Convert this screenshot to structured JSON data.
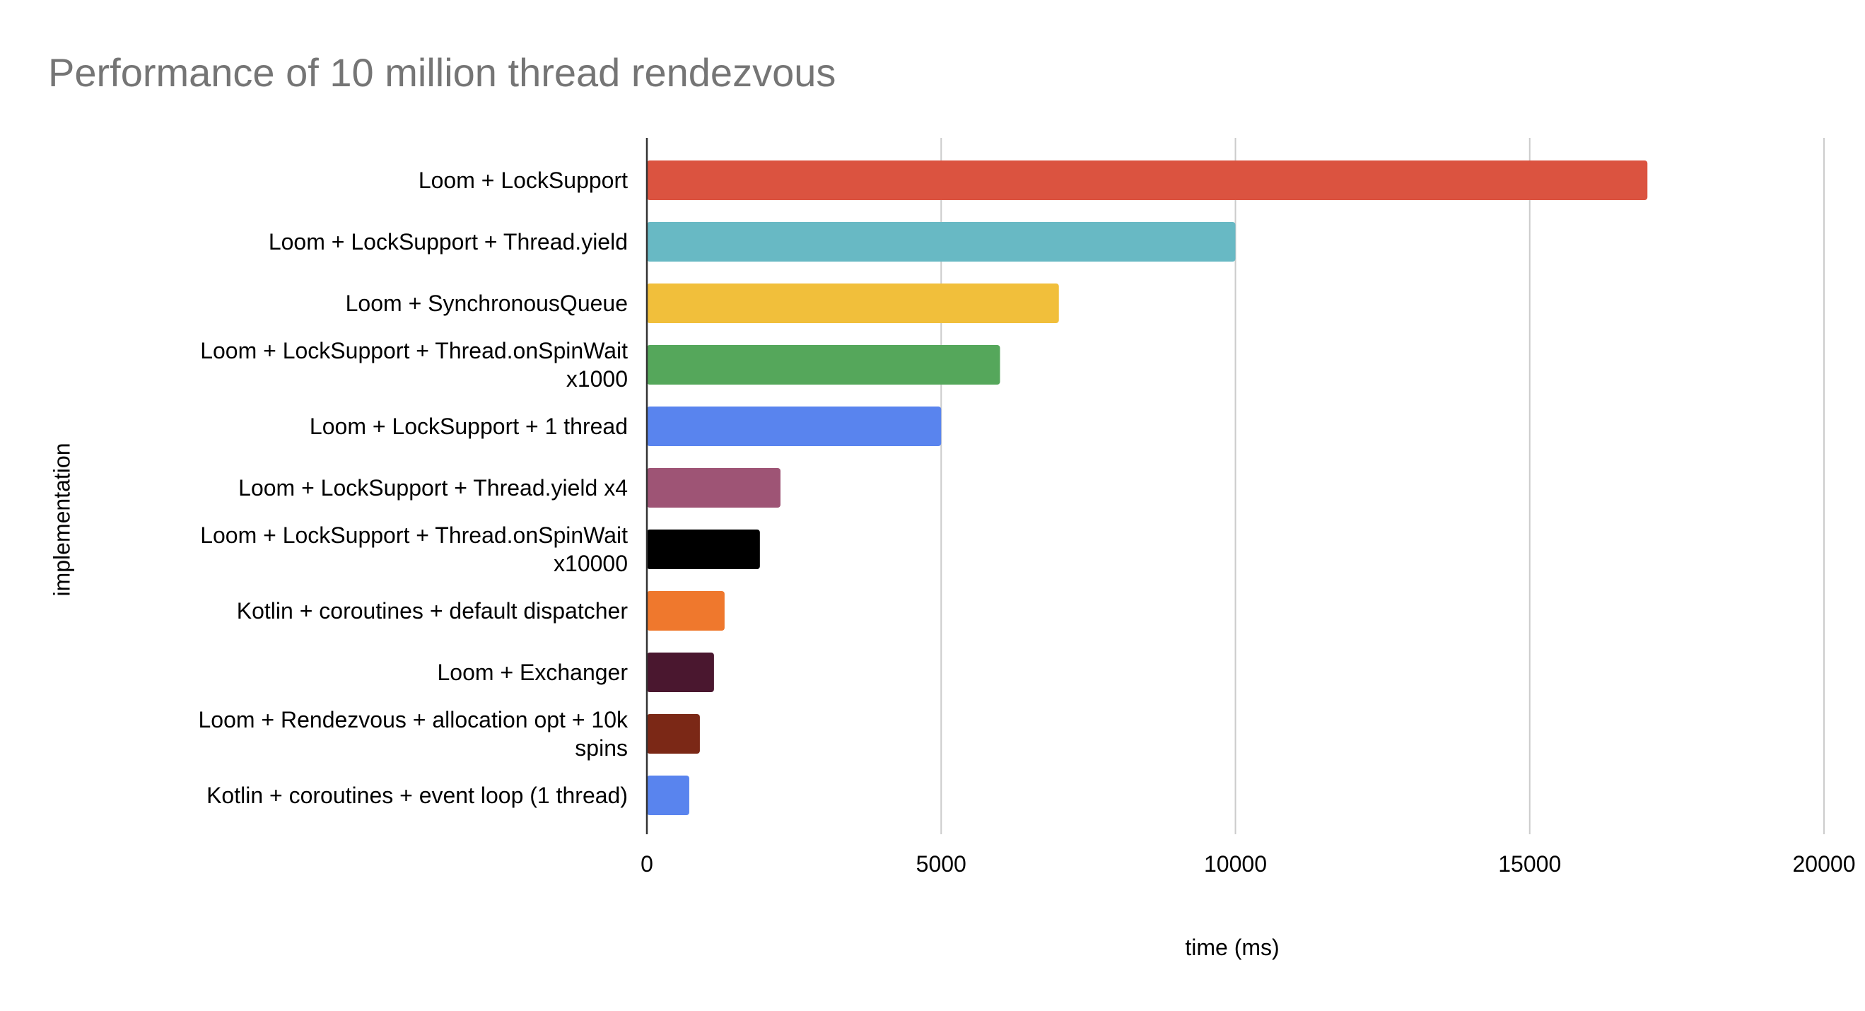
{
  "chart_data": {
    "type": "bar",
    "orientation": "horizontal",
    "title": "Performance of 10 million thread rendezvous",
    "xlabel": "time (ms)",
    "ylabel": "implementation",
    "xlim": [
      0,
      20000
    ],
    "xticks": [
      0,
      5000,
      10000,
      15000,
      20000
    ],
    "grid": true,
    "legend": "none",
    "categories": [
      [
        "Loom + LockSupport"
      ],
      [
        "Loom + LockSupport + Thread.yield"
      ],
      [
        "Loom + SynchronousQueue"
      ],
      [
        "Loom + LockSupport + Thread.onSpinWait",
        "x1000"
      ],
      [
        "Loom + LockSupport + 1 thread"
      ],
      [
        "Loom + LockSupport + Thread.yield x4"
      ],
      [
        "Loom + LockSupport + Thread.onSpinWait",
        "x10000"
      ],
      [
        "Kotlin + coroutines + default dispatcher"
      ],
      [
        "Loom + Exchanger"
      ],
      [
        "Loom + Rendezvous + allocation opt + 10k",
        "spins"
      ],
      [
        "Kotlin + coroutines + event loop (1 thread)"
      ]
    ],
    "values": [
      17000,
      10000,
      7000,
      6000,
      5000,
      2270,
      1920,
      1320,
      1140,
      900,
      720
    ],
    "colors": [
      "#db5340",
      "#68b9c4",
      "#f1bf3b",
      "#55a75b",
      "#5984ee",
      "#9e5475",
      "#000000",
      "#ef782d",
      "#4a172f",
      "#7b2816",
      "#5984ee"
    ]
  }
}
